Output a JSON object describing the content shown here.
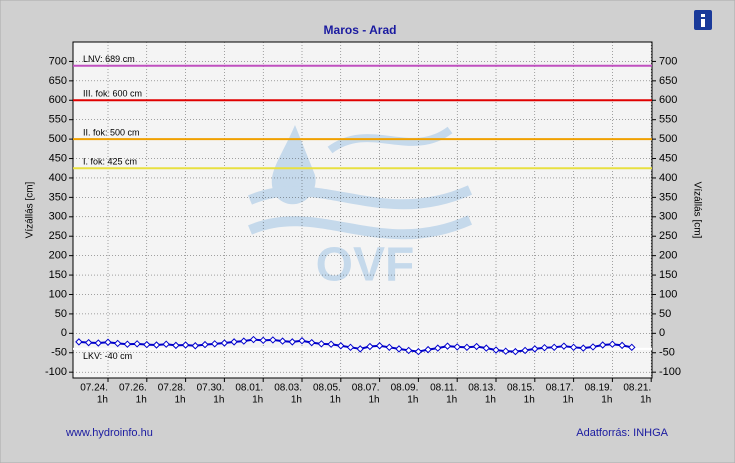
{
  "chart_data": {
    "type": "line",
    "title": "Maros - Arad",
    "ylabel": "Vízállás [cm]",
    "y2label": "Vízállás [cm]",
    "watermark": "OVF",
    "footer_left": "www.hydroinfo.hu",
    "footer_right": "Adatforrás: INHGA",
    "categories": [
      null,
      null,
      null,
      "07.24.",
      null,
      null,
      null,
      "07.26.",
      null,
      null,
      null,
      "07.28.",
      null,
      null,
      null,
      "07.30.",
      null,
      null,
      null,
      "08.01.",
      null,
      null,
      null,
      "08.03.",
      null,
      null,
      null,
      "08.05.",
      null,
      null,
      null,
      "08.07.",
      null,
      null,
      null,
      "08.09.",
      null,
      null,
      null,
      "08.11.",
      null,
      null,
      null,
      "08.13.",
      null,
      null,
      null,
      "08.15.",
      null,
      null,
      null,
      "08.17.",
      null,
      null,
      null,
      "08.19.",
      null,
      null,
      null,
      "08.21."
    ],
    "category_times": [
      null,
      null,
      null,
      "1h",
      null,
      null,
      null,
      "1h",
      null,
      null,
      null,
      "1h",
      null,
      null,
      null,
      "1h",
      null,
      null,
      null,
      "1h",
      null,
      null,
      null,
      "1h",
      null,
      null,
      null,
      "1h",
      null,
      null,
      null,
      "1h",
      null,
      null,
      null,
      "1h",
      null,
      null,
      null,
      "1h",
      null,
      null,
      null,
      "1h",
      null,
      null,
      null,
      "1h",
      null,
      null,
      null,
      "1h",
      null,
      null,
      null,
      "1h",
      null,
      null,
      null,
      "1h"
    ],
    "series": [
      {
        "name": "Vízállás",
        "color": "#0000cc",
        "values": [
          -22,
          -24,
          -25,
          -23,
          -26,
          -28,
          -27,
          -29,
          -30,
          -28,
          -31,
          -30,
          -32,
          -29,
          -27,
          -25,
          -22,
          -20,
          -16,
          -18,
          -17,
          -20,
          -22,
          -19,
          -24,
          -27,
          -28,
          -32,
          -36,
          -40,
          -34,
          -32,
          -36,
          -40,
          -44,
          -47,
          -42,
          -38,
          -33,
          -35,
          -36,
          -34,
          -38,
          -43,
          -46,
          -47,
          -44,
          -40,
          -37,
          -36,
          -33,
          -36,
          -38,
          -35,
          -30,
          -28,
          -31,
          -36,
          null,
          null
        ]
      }
    ],
    "reference_lines": [
      {
        "label": "LNV: 689 cm",
        "value": 689,
        "color": "#c050c0"
      },
      {
        "label": "III. fok: 600 cm",
        "value": 600,
        "color": "#e00000"
      },
      {
        "label": "II. fok: 500 cm",
        "value": 500,
        "color": "#f0a000"
      },
      {
        "label": "I. fok: 425 cm",
        "value": 425,
        "color": "#e8e040"
      },
      {
        "label": "LKV: -40 cm",
        "value": -40,
        "color": "#ffffff"
      }
    ],
    "ylim": [
      -115,
      750
    ],
    "yticks": [
      -100,
      -50,
      0,
      50,
      100,
      150,
      200,
      250,
      300,
      350,
      400,
      450,
      500,
      550,
      600,
      650,
      700
    ],
    "grid": true
  }
}
